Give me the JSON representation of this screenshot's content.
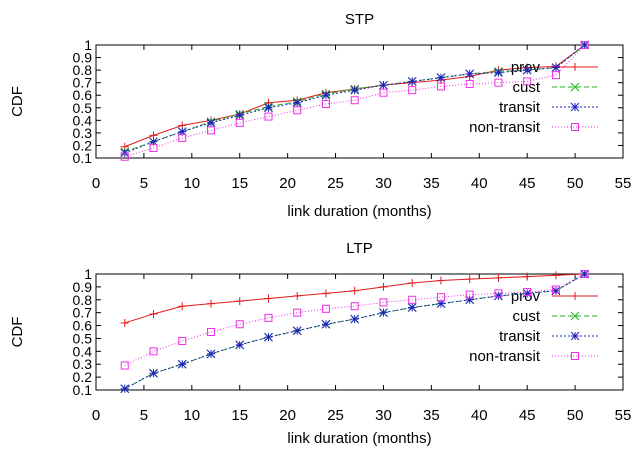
{
  "chart_data": [
    {
      "type": "line",
      "title": "STP",
      "xlabel": "link duration (months)",
      "ylabel": "CDF",
      "xlim": [
        0,
        55
      ],
      "ylim": [
        0.1,
        1
      ],
      "xticks": [
        0,
        5,
        10,
        15,
        20,
        25,
        30,
        35,
        40,
        45,
        50,
        55
      ],
      "yticks": [
        0.1,
        0.2,
        0.3,
        0.4,
        0.5,
        0.6,
        0.7,
        0.8,
        0.9,
        1
      ],
      "xtick_labels": [
        "0",
        "5",
        "10",
        "15",
        "20",
        "25",
        "30",
        "35",
        "40",
        "45",
        "50",
        "55"
      ],
      "ytick_labels": [
        "0.1",
        "0.2",
        "0.3",
        "0.4",
        "0.5",
        "0.6",
        "0.7",
        "0.8",
        "0.9",
        "1"
      ],
      "legend_position": "right",
      "x": [
        3,
        6,
        9,
        12,
        15,
        18,
        21,
        24,
        27,
        30,
        33,
        36,
        39,
        42,
        45,
        48,
        51
      ],
      "series": [
        {
          "name": "prov",
          "color": "#e41a1c",
          "marker": "plus",
          "dash": "",
          "values": [
            0.19,
            0.28,
            0.36,
            0.4,
            0.45,
            0.54,
            0.56,
            0.62,
            0.65,
            0.68,
            0.7,
            0.72,
            0.75,
            0.8,
            0.82,
            0.83,
            1.0
          ]
        },
        {
          "name": "cust",
          "color": "#1fb31f",
          "marker": "x",
          "dash": "5,3",
          "values": [
            0.15,
            0.23,
            0.31,
            0.39,
            0.45,
            0.51,
            0.55,
            0.61,
            0.65,
            0.68,
            0.71,
            0.74,
            0.77,
            0.79,
            0.8,
            0.82,
            1.0
          ]
        },
        {
          "name": "transit",
          "color": "#2020c0",
          "marker": "star",
          "dash": "2,2",
          "values": [
            0.14,
            0.23,
            0.31,
            0.38,
            0.44,
            0.5,
            0.54,
            0.6,
            0.64,
            0.68,
            0.71,
            0.74,
            0.77,
            0.78,
            0.8,
            0.82,
            1.0
          ]
        },
        {
          "name": "non-transit",
          "color": "#ee2ee8",
          "marker": "square",
          "dash": "1,2",
          "values": [
            0.11,
            0.18,
            0.26,
            0.32,
            0.38,
            0.43,
            0.48,
            0.53,
            0.56,
            0.62,
            0.64,
            0.67,
            0.69,
            0.7,
            0.71,
            0.76,
            1.0
          ]
        }
      ]
    },
    {
      "type": "line",
      "title": "LTP",
      "xlabel": "link duration (months)",
      "ylabel": "CDF",
      "xlim": [
        0,
        55
      ],
      "ylim": [
        0.1,
        1
      ],
      "xticks": [
        0,
        5,
        10,
        15,
        20,
        25,
        30,
        35,
        40,
        45,
        50,
        55
      ],
      "yticks": [
        0.1,
        0.2,
        0.3,
        0.4,
        0.5,
        0.6,
        0.7,
        0.8,
        0.9,
        1
      ],
      "xtick_labels": [
        "0",
        "5",
        "10",
        "15",
        "20",
        "25",
        "30",
        "35",
        "40",
        "45",
        "50",
        "55"
      ],
      "ytick_labels": [
        "0.1",
        "0.2",
        "0.3",
        "0.4",
        "0.5",
        "0.6",
        "0.7",
        "0.8",
        "0.9",
        "1"
      ],
      "legend_position": "right",
      "x": [
        3,
        6,
        9,
        12,
        15,
        18,
        21,
        24,
        27,
        30,
        33,
        36,
        39,
        42,
        45,
        48,
        51
      ],
      "series": [
        {
          "name": "prov",
          "color": "#e41a1c",
          "marker": "plus",
          "dash": "",
          "values": [
            0.62,
            0.69,
            0.75,
            0.77,
            0.79,
            0.81,
            0.83,
            0.85,
            0.87,
            0.9,
            0.93,
            0.95,
            0.96,
            0.97,
            0.98,
            0.99,
            1.0
          ]
        },
        {
          "name": "cust",
          "color": "#1fb31f",
          "marker": "x",
          "dash": "5,3",
          "values": [
            0.11,
            0.23,
            0.3,
            0.38,
            0.45,
            0.51,
            0.56,
            0.61,
            0.65,
            0.7,
            0.74,
            0.77,
            0.8,
            0.83,
            0.85,
            0.87,
            1.0
          ]
        },
        {
          "name": "transit",
          "color": "#2020c0",
          "marker": "star",
          "dash": "2,2",
          "values": [
            0.11,
            0.23,
            0.3,
            0.38,
            0.45,
            0.51,
            0.56,
            0.61,
            0.65,
            0.7,
            0.74,
            0.77,
            0.8,
            0.83,
            0.85,
            0.87,
            1.0
          ]
        },
        {
          "name": "non-transit",
          "color": "#ee2ee8",
          "marker": "square",
          "dash": "1,2",
          "values": [
            0.29,
            0.4,
            0.48,
            0.55,
            0.61,
            0.66,
            0.7,
            0.73,
            0.75,
            0.78,
            0.8,
            0.82,
            0.84,
            0.85,
            0.86,
            0.88,
            1.0
          ]
        }
      ]
    }
  ]
}
